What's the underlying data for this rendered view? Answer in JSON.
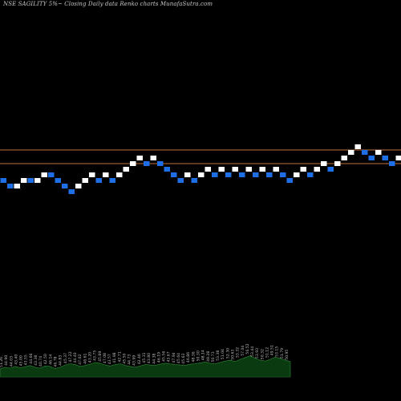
{
  "header": {
    "title": "NSE SAGILITY 5%~  Closing Daily data  Renko  charts MunafaSutra.com"
  },
  "colors": {
    "background": "#000000",
    "up_brick": "#ffffff",
    "down_brick": "#1e6fe6",
    "level_line": "#c0703a",
    "volume_fill": "#0a3a10",
    "volume_line": "#2f8a3a"
  },
  "chart_data": {
    "type": "renko",
    "brick_size_percent": 5,
    "reference_levels": [
      "upper",
      "lower"
    ],
    "bricks": [
      {
        "dir": "down",
        "level": 0
      },
      {
        "dir": "down",
        "level": -1
      },
      {
        "dir": "up",
        "level": -1
      },
      {
        "dir": "up",
        "level": 0
      },
      {
        "dir": "down",
        "level": 0
      },
      {
        "dir": "up",
        "level": 0
      },
      {
        "dir": "up",
        "level": 1
      },
      {
        "dir": "down",
        "level": 1
      },
      {
        "dir": "down",
        "level": 0
      },
      {
        "dir": "down",
        "level": -1
      },
      {
        "dir": "down",
        "level": -2
      },
      {
        "dir": "up",
        "level": -1
      },
      {
        "dir": "up",
        "level": 0
      },
      {
        "dir": "up",
        "level": 1
      },
      {
        "dir": "down",
        "level": 0
      },
      {
        "dir": "up",
        "level": 1
      },
      {
        "dir": "down",
        "level": 0
      },
      {
        "dir": "up",
        "level": 1
      },
      {
        "dir": "up",
        "level": 2
      },
      {
        "dir": "up",
        "level": 3
      },
      {
        "dir": "up",
        "level": 4
      },
      {
        "dir": "down",
        "level": 3
      },
      {
        "dir": "up",
        "level": 4
      },
      {
        "dir": "down",
        "level": 3
      },
      {
        "dir": "down",
        "level": 2
      },
      {
        "dir": "down",
        "level": 1
      },
      {
        "dir": "down",
        "level": 0
      },
      {
        "dir": "up",
        "level": 1
      },
      {
        "dir": "down",
        "level": 0
      },
      {
        "dir": "up",
        "level": 1
      },
      {
        "dir": "up",
        "level": 2
      },
      {
        "dir": "down",
        "level": 1
      },
      {
        "dir": "up",
        "level": 2
      },
      {
        "dir": "down",
        "level": 1
      },
      {
        "dir": "up",
        "level": 2
      },
      {
        "dir": "down",
        "level": 1
      },
      {
        "dir": "up",
        "level": 2
      },
      {
        "dir": "down",
        "level": 1
      },
      {
        "dir": "up",
        "level": 2
      },
      {
        "dir": "down",
        "level": 1
      },
      {
        "dir": "up",
        "level": 2
      },
      {
        "dir": "down",
        "level": 1
      },
      {
        "dir": "down",
        "level": 0
      },
      {
        "dir": "up",
        "level": 1
      },
      {
        "dir": "up",
        "level": 2
      },
      {
        "dir": "down",
        "level": 1
      },
      {
        "dir": "up",
        "level": 2
      },
      {
        "dir": "up",
        "level": 3
      },
      {
        "dir": "down",
        "level": 2
      },
      {
        "dir": "up",
        "level": 3
      },
      {
        "dir": "up",
        "level": 4
      },
      {
        "dir": "up",
        "level": 5
      },
      {
        "dir": "up",
        "level": 6
      },
      {
        "dir": "down",
        "level": 5
      },
      {
        "dir": "down",
        "level": 4
      },
      {
        "dir": "up",
        "level": 5
      },
      {
        "dir": "down",
        "level": 4
      },
      {
        "dir": "down",
        "level": 3
      },
      {
        "dir": "up",
        "level": 4
      }
    ],
    "volume": [
      18,
      22,
      20,
      24,
      21,
      23,
      26,
      22,
      20,
      25,
      24,
      19,
      22,
      27,
      30,
      28,
      24,
      26,
      29,
      33,
      31,
      27,
      25,
      28,
      30,
      26,
      24,
      22,
      25,
      28,
      27,
      26,
      29,
      31,
      30,
      28,
      27,
      26,
      29,
      30,
      32,
      34,
      31,
      30,
      33,
      36,
      38,
      35,
      40,
      44,
      48,
      42,
      38,
      36,
      40,
      45,
      42,
      38,
      35
    ],
    "volume_labels": [
      "51.26",
      "44.90",
      "44.03",
      "43.40",
      "45.00",
      "43.55",
      "44.66",
      "43.38",
      "40.74",
      "42.50",
      "46.14",
      "46.78",
      "44.83",
      "45.37",
      "47.22",
      "44.40",
      "47.02",
      "46.61",
      "43.20",
      "43.75",
      "45.89",
      "47.08",
      "43.57",
      "41.98",
      "42.71",
      "45.50",
      "44.73",
      "43.99",
      "42.46",
      "45.31",
      "43.80",
      "44.38",
      "46.19",
      "45.56",
      "43.67",
      "47.94",
      "45.64",
      "45.63",
      "46.86",
      "48.36",
      "50.30",
      "48.14",
      "49.28",
      "50.73",
      "53.38",
      "51.04",
      "52.30",
      "50.63",
      "53.32",
      "57.04",
      "56.52",
      "53.44",
      "53.93",
      "50.32",
      "51.12",
      "49.51",
      "53.15",
      "51.79",
      "50.95"
    ]
  }
}
